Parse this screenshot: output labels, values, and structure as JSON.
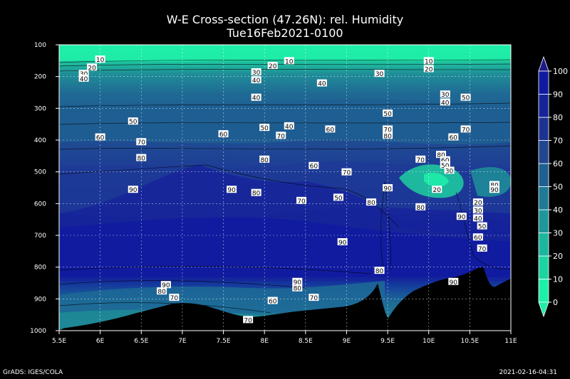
{
  "title": "W-E Cross-section (47.26N): rel. Humidity",
  "subtitle": "Tue16Feb2021-0100",
  "footer_left": "GrADS: IGES/COLA",
  "footer_right": "2021-02-16-04:31",
  "chart_data": {
    "type": "contour",
    "x_ticks": [
      "5.5E",
      "6E",
      "6.5E",
      "7E",
      "7.5E",
      "8E",
      "8.5E",
      "9E",
      "9.5E",
      "10E",
      "10.5E",
      "11E"
    ],
    "y_ticks": [
      "100",
      "200",
      "300",
      "400",
      "500",
      "600",
      "700",
      "800",
      "900",
      "1000"
    ],
    "xlim": [
      5.5,
      11
    ],
    "ylim": [
      100,
      1000
    ],
    "y_inverted": true,
    "grid": true,
    "colorbar": {
      "levels": [
        0,
        10,
        20,
        30,
        40,
        50,
        60,
        70,
        80,
        90,
        100
      ],
      "labels": [
        "0",
        "10",
        "20",
        "30",
        "40",
        "50",
        "60",
        "70",
        "80",
        "90",
        "100"
      ],
      "colors": [
        "#1ef0a8",
        "#1cd4a0",
        "#1cb69e",
        "#1d979a",
        "#1e7a96",
        "#1f5f92",
        "#20468f",
        "#1d3394",
        "#16249a",
        "#0f1aa0",
        "#1a1a8c"
      ]
    },
    "contour_labels": [
      {
        "x": 6.0,
        "y": 145,
        "text": "10"
      },
      {
        "x": 5.9,
        "y": 170,
        "text": "20"
      },
      {
        "x": 5.8,
        "y": 190,
        "text": "30"
      },
      {
        "x": 5.8,
        "y": 205,
        "text": "40"
      },
      {
        "x": 8.3,
        "y": 150,
        "text": "10"
      },
      {
        "x": 8.1,
        "y": 165,
        "text": "20"
      },
      {
        "x": 7.9,
        "y": 185,
        "text": "30"
      },
      {
        "x": 7.9,
        "y": 210,
        "text": "40"
      },
      {
        "x": 10.0,
        "y": 150,
        "text": "10"
      },
      {
        "x": 10.0,
        "y": 175,
        "text": "20"
      },
      {
        "x": 9.4,
        "y": 190,
        "text": "30"
      },
      {
        "x": 8.7,
        "y": 220,
        "text": "40"
      },
      {
        "x": 7.9,
        "y": 265,
        "text": "40"
      },
      {
        "x": 10.2,
        "y": 255,
        "text": "30"
      },
      {
        "x": 10.2,
        "y": 280,
        "text": "40"
      },
      {
        "x": 10.45,
        "y": 265,
        "text": "50"
      },
      {
        "x": 6.4,
        "y": 340,
        "text": "50"
      },
      {
        "x": 8.0,
        "y": 360,
        "text": "50"
      },
      {
        "x": 8.3,
        "y": 355,
        "text": "40"
      },
      {
        "x": 9.5,
        "y": 315,
        "text": "50"
      },
      {
        "x": 6.0,
        "y": 390,
        "text": "60"
      },
      {
        "x": 6.5,
        "y": 405,
        "text": "70"
      },
      {
        "x": 7.5,
        "y": 380,
        "text": "60"
      },
      {
        "x": 8.2,
        "y": 385,
        "text": "70"
      },
      {
        "x": 8.8,
        "y": 365,
        "text": "60"
      },
      {
        "x": 9.5,
        "y": 365,
        "text": "70"
      },
      {
        "x": 9.5,
        "y": 385,
        "text": "80"
      },
      {
        "x": 10.3,
        "y": 390,
        "text": "60"
      },
      {
        "x": 10.45,
        "y": 365,
        "text": "70"
      },
      {
        "x": 6.5,
        "y": 455,
        "text": "80"
      },
      {
        "x": 8.0,
        "y": 460,
        "text": "80"
      },
      {
        "x": 8.6,
        "y": 480,
        "text": "60"
      },
      {
        "x": 9.0,
        "y": 500,
        "text": "70"
      },
      {
        "x": 9.9,
        "y": 460,
        "text": "70"
      },
      {
        "x": 10.15,
        "y": 445,
        "text": "80"
      },
      {
        "x": 10.2,
        "y": 462,
        "text": "60"
      },
      {
        "x": 10.2,
        "y": 478,
        "text": "50"
      },
      {
        "x": 10.25,
        "y": 495,
        "text": "30"
      },
      {
        "x": 10.1,
        "y": 555,
        "text": "20"
      },
      {
        "x": 10.8,
        "y": 540,
        "text": "80"
      },
      {
        "x": 10.8,
        "y": 555,
        "text": "90"
      },
      {
        "x": 6.4,
        "y": 555,
        "text": "90"
      },
      {
        "x": 7.6,
        "y": 555,
        "text": "90"
      },
      {
        "x": 7.9,
        "y": 565,
        "text": "80"
      },
      {
        "x": 8.45,
        "y": 590,
        "text": "70"
      },
      {
        "x": 8.9,
        "y": 580,
        "text": "50"
      },
      {
        "x": 9.3,
        "y": 595,
        "text": "80"
      },
      {
        "x": 9.5,
        "y": 550,
        "text": "90"
      },
      {
        "x": 9.9,
        "y": 610,
        "text": "80"
      },
      {
        "x": 10.6,
        "y": 595,
        "text": "20"
      },
      {
        "x": 10.6,
        "y": 620,
        "text": "30"
      },
      {
        "x": 10.6,
        "y": 645,
        "text": "40"
      },
      {
        "x": 10.65,
        "y": 670,
        "text": "50"
      },
      {
        "x": 10.6,
        "y": 705,
        "text": "60"
      },
      {
        "x": 10.65,
        "y": 740,
        "text": "70"
      },
      {
        "x": 10.4,
        "y": 640,
        "text": "90"
      },
      {
        "x": 8.95,
        "y": 720,
        "text": "90"
      },
      {
        "x": 9.4,
        "y": 810,
        "text": "80"
      },
      {
        "x": 10.3,
        "y": 845,
        "text": "90"
      },
      {
        "x": 6.8,
        "y": 855,
        "text": "90"
      },
      {
        "x": 6.75,
        "y": 875,
        "text": "80"
      },
      {
        "x": 6.9,
        "y": 895,
        "text": "70"
      },
      {
        "x": 8.4,
        "y": 845,
        "text": "90"
      },
      {
        "x": 8.4,
        "y": 865,
        "text": "80"
      },
      {
        "x": 8.6,
        "y": 895,
        "text": "70"
      },
      {
        "x": 8.1,
        "y": 905,
        "text": "60"
      },
      {
        "x": 7.8,
        "y": 965,
        "text": "70"
      }
    ]
  }
}
